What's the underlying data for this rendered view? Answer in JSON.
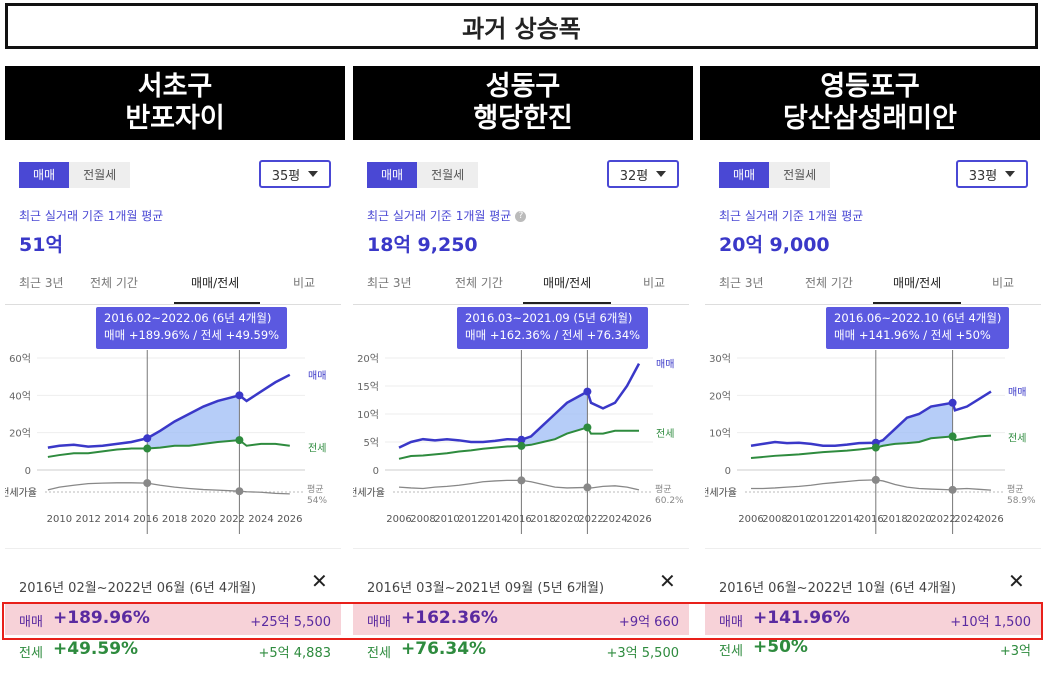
{
  "title": "과거 상승폭",
  "colors": {
    "sale": "#3a38c8",
    "jeonse": "#2e8b3e",
    "ratio": "#888888",
    "fill": "#9dbcf5",
    "accent": "#4a48d4",
    "highlight": "#e8201a"
  },
  "panels": [
    {
      "district": "서초구",
      "complex": "반포자이",
      "tab_sale": "매매",
      "tab_rent": "전월세",
      "area_select": "35평",
      "avg_label": "최근 실거래 기준 1개월 평균",
      "avg_price": "51억",
      "nav": [
        "최근 3년",
        "전체 기간",
        "매매/전세",
        "비교"
      ],
      "tooltip_period": "2016.02~2022.06 (6년 4개월)",
      "tooltip_change": "매매 +189.96%  /  전세 +49.59%",
      "period_text": "2016년 02월~2022년 06월 (6년 4개월)",
      "sale_label": "매매",
      "sale_pct": "+189.96%",
      "sale_amt": "+25억 5,500",
      "jeonse_label": "전세",
      "jeonse_pct": "+49.59%",
      "jeonse_amt": "+5억 4,883",
      "chart_data": {
        "type": "line",
        "x_ticks": [
          "2010",
          "2012",
          "2014",
          "2016",
          "2018",
          "2020",
          "2022",
          "2024",
          "2026"
        ],
        "xlim": [
          2009,
          2026.5
        ],
        "y_ticks": [
          "0",
          "20억",
          "40억",
          "60억"
        ],
        "ylim": [
          0,
          60
        ],
        "sale_label": "매매",
        "jeonse_label": "전세",
        "ratio_label": "전세가율",
        "ratio_avg_label": "평균",
        "ratio_avg_value": "54%",
        "range": [
          2016.1,
          2022.5
        ],
        "sale_points": [
          [
            2009.2,
            12
          ],
          [
            2010,
            13
          ],
          [
            2011,
            13.5
          ],
          [
            2012,
            12.5
          ],
          [
            2013,
            13
          ],
          [
            2014,
            14
          ],
          [
            2015,
            15
          ],
          [
            2016.1,
            17
          ],
          [
            2017,
            21
          ],
          [
            2018,
            26
          ],
          [
            2019,
            30
          ],
          [
            2020,
            34
          ],
          [
            2021,
            37
          ],
          [
            2022.5,
            40
          ],
          [
            2023,
            37
          ],
          [
            2024,
            42
          ],
          [
            2025,
            47
          ],
          [
            2026,
            51
          ]
        ],
        "jeonse_points": [
          [
            2009.2,
            7
          ],
          [
            2010,
            8
          ],
          [
            2011,
            9
          ],
          [
            2012,
            9
          ],
          [
            2013,
            10
          ],
          [
            2014,
            11
          ],
          [
            2015,
            11.5
          ],
          [
            2016.1,
            11.5
          ],
          [
            2017,
            12
          ],
          [
            2018,
            13
          ],
          [
            2019,
            13
          ],
          [
            2020,
            14
          ],
          [
            2021,
            15
          ],
          [
            2022.5,
            16
          ],
          [
            2023,
            13
          ],
          [
            2024,
            14
          ],
          [
            2025,
            14
          ],
          [
            2026,
            13
          ]
        ],
        "ratio_points": [
          [
            2009.2,
            45
          ],
          [
            2010,
            55
          ],
          [
            2011,
            62
          ],
          [
            2012,
            68
          ],
          [
            2013,
            70
          ],
          [
            2014,
            71
          ],
          [
            2015,
            71
          ],
          [
            2016.1,
            70
          ],
          [
            2017,
            62
          ],
          [
            2018,
            55
          ],
          [
            2019,
            50
          ],
          [
            2020,
            46
          ],
          [
            2021,
            44
          ],
          [
            2022.5,
            40
          ],
          [
            2023,
            38
          ],
          [
            2024,
            36
          ],
          [
            2025,
            32
          ],
          [
            2026,
            30
          ]
        ]
      }
    },
    {
      "district": "성동구",
      "complex": "행당한진",
      "tab_sale": "매매",
      "tab_rent": "전월세",
      "area_select": "32평",
      "avg_label": "최근 실거래 기준 1개월 평균",
      "avg_price": "18억 9,250",
      "nav": [
        "최근 3년",
        "전체 기간",
        "매매/전세",
        "비교"
      ],
      "tooltip_period": "2016.03~2021.09 (5년 6개월)",
      "tooltip_change": "매매 +162.36%  /  전세 +76.34%",
      "period_text": "2016년 03월~2021년 09월 (5년 6개월)",
      "sale_label": "매매",
      "sale_pct": "+162.36%",
      "sale_amt": "+9억 660",
      "jeonse_label": "전세",
      "jeonse_pct": "+76.34%",
      "jeonse_amt": "+3억 5,500",
      "chart_data": {
        "type": "line",
        "x_ticks": [
          "2006",
          "2008",
          "2010",
          "2012",
          "2014",
          "2016",
          "2018",
          "2020",
          "2022",
          "2024",
          "2026"
        ],
        "xlim": [
          2005.5,
          2026.5
        ],
        "y_ticks": [
          "0",
          "5억",
          "10억",
          "15억",
          "20억"
        ],
        "ylim": [
          0,
          20
        ],
        "sale_label": "매매",
        "jeonse_label": "전세",
        "ratio_label": "전세가율",
        "ratio_avg_label": "평균",
        "ratio_avg_value": "60.2%",
        "range": [
          2016.2,
          2021.7
        ],
        "sale_points": [
          [
            2006,
            4
          ],
          [
            2007,
            5
          ],
          [
            2008,
            5.5
          ],
          [
            2009,
            5.3
          ],
          [
            2010,
            5.5
          ],
          [
            2011,
            5.3
          ],
          [
            2012,
            5
          ],
          [
            2013,
            5
          ],
          [
            2014,
            5.2
          ],
          [
            2015,
            5.5
          ],
          [
            2016.2,
            5.4
          ],
          [
            2017,
            6
          ],
          [
            2018,
            8
          ],
          [
            2019,
            10
          ],
          [
            2020,
            12
          ],
          [
            2021.7,
            14
          ],
          [
            2022,
            12
          ],
          [
            2023,
            11
          ],
          [
            2024,
            12
          ],
          [
            2025,
            15
          ],
          [
            2026,
            19
          ]
        ],
        "jeonse_points": [
          [
            2006,
            2
          ],
          [
            2007,
            2.5
          ],
          [
            2008,
            2.6
          ],
          [
            2009,
            2.8
          ],
          [
            2010,
            3
          ],
          [
            2011,
            3.3
          ],
          [
            2012,
            3.5
          ],
          [
            2013,
            3.8
          ],
          [
            2014,
            4
          ],
          [
            2015,
            4.2
          ],
          [
            2016.2,
            4.3
          ],
          [
            2017,
            4.5
          ],
          [
            2018,
            5
          ],
          [
            2019,
            5.5
          ],
          [
            2020,
            6.5
          ],
          [
            2021.7,
            7.6
          ],
          [
            2022,
            6.5
          ],
          [
            2023,
            6.5
          ],
          [
            2024,
            7
          ],
          [
            2025,
            7
          ],
          [
            2026,
            7
          ]
        ],
        "ratio_points": [
          [
            2006,
            55
          ],
          [
            2007,
            52
          ],
          [
            2008,
            50
          ],
          [
            2009,
            55
          ],
          [
            2010,
            58
          ],
          [
            2011,
            62
          ],
          [
            2012,
            68
          ],
          [
            2013,
            75
          ],
          [
            2014,
            78
          ],
          [
            2015,
            80
          ],
          [
            2016.2,
            80
          ],
          [
            2017,
            75
          ],
          [
            2018,
            65
          ],
          [
            2019,
            55
          ],
          [
            2020,
            52
          ],
          [
            2021.7,
            54
          ],
          [
            2022,
            52
          ],
          [
            2023,
            58
          ],
          [
            2024,
            60
          ],
          [
            2025,
            55
          ],
          [
            2026,
            45
          ]
        ]
      }
    },
    {
      "district": "영등포구",
      "complex": "당산삼성래미안",
      "tab_sale": "매매",
      "tab_rent": "전월세",
      "area_select": "33평",
      "avg_label": "최근 실거래 기준 1개월 평균",
      "avg_price": "20억 9,000",
      "nav": [
        "최근 3년",
        "전체 기간",
        "매매/전세",
        "비교"
      ],
      "tooltip_period": "2016.06~2022.10 (6년 4개월)",
      "tooltip_change": "매매 +141.96%  /  전세 +50%",
      "period_text": "2016년 06월~2022년 10월 (6년 4개월)",
      "sale_label": "매매",
      "sale_pct": "+141.96%",
      "sale_amt": "+10억 1,500",
      "jeonse_label": "전세",
      "jeonse_pct": "+50%",
      "jeonse_amt": "+3억",
      "chart_data": {
        "type": "line",
        "x_ticks": [
          "2006",
          "2008",
          "2010",
          "2012",
          "2014",
          "2016",
          "2018",
          "2020",
          "2022",
          "2024",
          "2026"
        ],
        "xlim": [
          2005.5,
          2026.5
        ],
        "y_ticks": [
          "0",
          "10억",
          "20억",
          "30억"
        ],
        "ylim": [
          0,
          30
        ],
        "sale_label": "매매",
        "jeonse_label": "전세",
        "ratio_label": "전세가율",
        "ratio_avg_label": "평균",
        "ratio_avg_value": "58.9%",
        "range": [
          2016.4,
          2022.8
        ],
        "sale_points": [
          [
            2006,
            6.5
          ],
          [
            2007,
            7
          ],
          [
            2008,
            7.5
          ],
          [
            2009,
            7.2
          ],
          [
            2010,
            7.3
          ],
          [
            2011,
            7
          ],
          [
            2012,
            6.5
          ],
          [
            2013,
            6.5
          ],
          [
            2014,
            6.8
          ],
          [
            2015,
            7.2
          ],
          [
            2016.4,
            7.3
          ],
          [
            2017,
            8
          ],
          [
            2018,
            11
          ],
          [
            2019,
            14
          ],
          [
            2020,
            15
          ],
          [
            2021,
            17
          ],
          [
            2022.8,
            18
          ],
          [
            2023,
            16
          ],
          [
            2024,
            17
          ],
          [
            2025,
            19
          ],
          [
            2026,
            21
          ]
        ],
        "jeonse_points": [
          [
            2006,
            3.2
          ],
          [
            2007,
            3.5
          ],
          [
            2008,
            3.8
          ],
          [
            2009,
            4
          ],
          [
            2010,
            4.2
          ],
          [
            2011,
            4.5
          ],
          [
            2012,
            4.8
          ],
          [
            2013,
            5
          ],
          [
            2014,
            5.2
          ],
          [
            2015,
            5.5
          ],
          [
            2016.4,
            6
          ],
          [
            2017,
            6.5
          ],
          [
            2018,
            7
          ],
          [
            2019,
            7.2
          ],
          [
            2020,
            7.5
          ],
          [
            2021,
            8.5
          ],
          [
            2022.8,
            9
          ],
          [
            2023,
            8
          ],
          [
            2024,
            8.5
          ],
          [
            2025,
            9
          ],
          [
            2026,
            9.2
          ]
        ],
        "ratio_points": [
          [
            2006,
            50
          ],
          [
            2007,
            50
          ],
          [
            2008,
            52
          ],
          [
            2009,
            55
          ],
          [
            2010,
            58
          ],
          [
            2011,
            62
          ],
          [
            2012,
            68
          ],
          [
            2013,
            72
          ],
          [
            2014,
            76
          ],
          [
            2015,
            80
          ],
          [
            2016.4,
            82
          ],
          [
            2017,
            78
          ],
          [
            2018,
            65
          ],
          [
            2019,
            55
          ],
          [
            2020,
            50
          ],
          [
            2021,
            48
          ],
          [
            2022.8,
            45
          ],
          [
            2023,
            48
          ],
          [
            2024,
            50
          ],
          [
            2025,
            47
          ],
          [
            2026,
            44
          ]
        ]
      }
    }
  ]
}
